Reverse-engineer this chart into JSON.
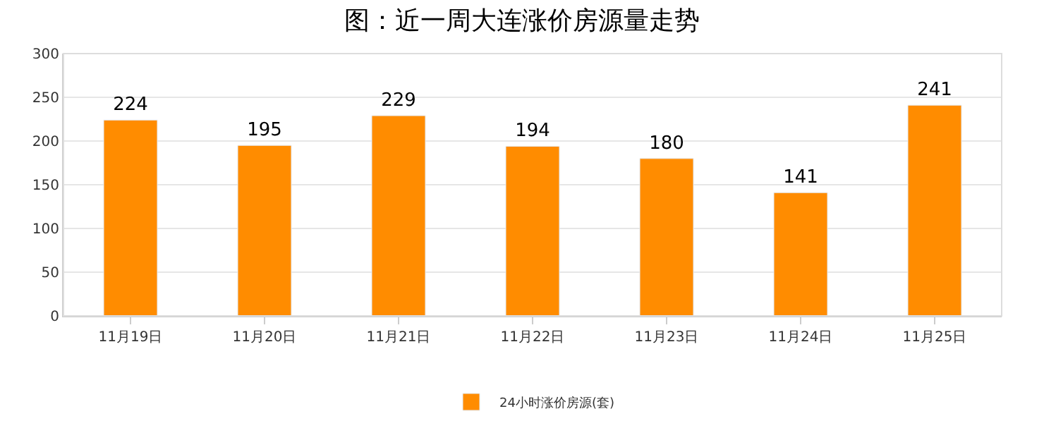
{
  "chart_data": {
    "type": "bar",
    "title": "图：近一周大连涨价房源量走势",
    "categories": [
      "11月19日",
      "11月20日",
      "11月21日",
      "11月22日",
      "11月23日",
      "11月24日",
      "11月25日"
    ],
    "series": [
      {
        "name": "24小时涨价房源(套)",
        "color": "#ff8c00",
        "values": [
          224,
          195,
          229,
          194,
          180,
          141,
          241
        ]
      }
    ],
    "ylim": [
      0,
      300
    ],
    "yticks": [
      0,
      50,
      100,
      150,
      200,
      250,
      300
    ],
    "grid": "y",
    "legend": "bottom",
    "data_labels": true
  }
}
